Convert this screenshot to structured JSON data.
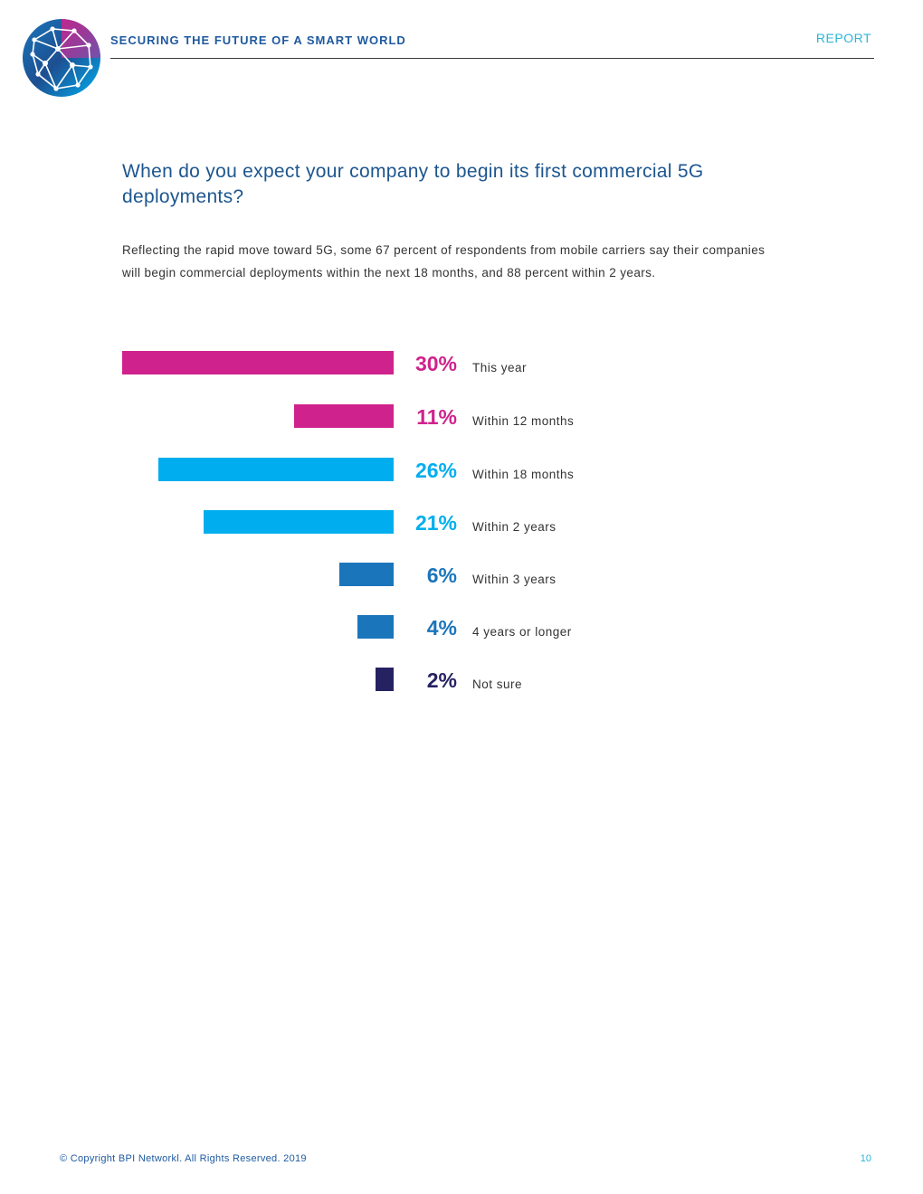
{
  "header": {
    "title": "SECURING THE FUTURE OF A SMART WORLD",
    "tag": "REPORT"
  },
  "logo": {
    "icon": "globe-network-logo-icon"
  },
  "question": "When do you expect your company to begin its first commercial 5G deployments?",
  "intro": "Reflecting the rapid move toward 5G, some 67 percent of respondents from mobile carriers say their companies will begin commercial deployments within the next 18 months, and 88 percent within 2 years.",
  "chart_data": {
    "type": "bar",
    "orientation": "horizontal",
    "categories": [
      "This year",
      "Within 12 months",
      "Within 18 months",
      "Within 2 years",
      "Within 3 years",
      "4 years or longer",
      "Not sure"
    ],
    "values": [
      30,
      11,
      26,
      21,
      6,
      4,
      2
    ],
    "value_labels": [
      "30%",
      "11%",
      "26%",
      "21%",
      "6%",
      "4%",
      "2%"
    ],
    "colors": [
      "#d0228c",
      "#d0228c",
      "#00aeef",
      "#00aeef",
      "#1b75bb",
      "#1b75bb",
      "#262262"
    ],
    "unit": "%",
    "title": "",
    "xlabel": "",
    "ylabel": ""
  },
  "footer": {
    "copyright": "© Copyright BPI Networkl. All Rights Reserved. 2019",
    "page": "10"
  }
}
